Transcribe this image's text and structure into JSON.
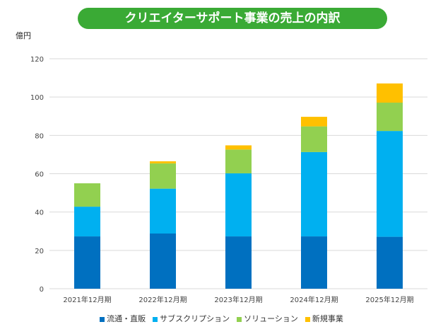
{
  "chart_data": {
    "type": "bar",
    "stacked": true,
    "title": "クリエイターサポート事業の売上の内訳",
    "ylabel": "億円",
    "ylim": [
      0,
      120
    ],
    "yticks": [
      0,
      20,
      40,
      60,
      80,
      100,
      120
    ],
    "grid": true,
    "legend_position": "bottom",
    "categories": [
      "2021年12月期",
      "2022年12月期",
      "2023年12月期",
      "2024年12月期",
      "2025年12月期"
    ],
    "series": [
      {
        "name": "流通・直販",
        "color": "#0070c0",
        "values": [
          27.3,
          28.8,
          27.3,
          27.3,
          27.1
        ]
      },
      {
        "name": "サブスクリプション",
        "color": "#00b0f0",
        "values": [
          15.5,
          23.4,
          32.9,
          44.0,
          55.2
        ]
      },
      {
        "name": "ソリューション",
        "color": "#92d050",
        "values": [
          12.2,
          13.2,
          12.4,
          13.4,
          14.8
        ]
      },
      {
        "name": "新規事業",
        "color": "#ffc000",
        "values": [
          0,
          1.1,
          2.2,
          5.0,
          10.0
        ]
      }
    ]
  }
}
